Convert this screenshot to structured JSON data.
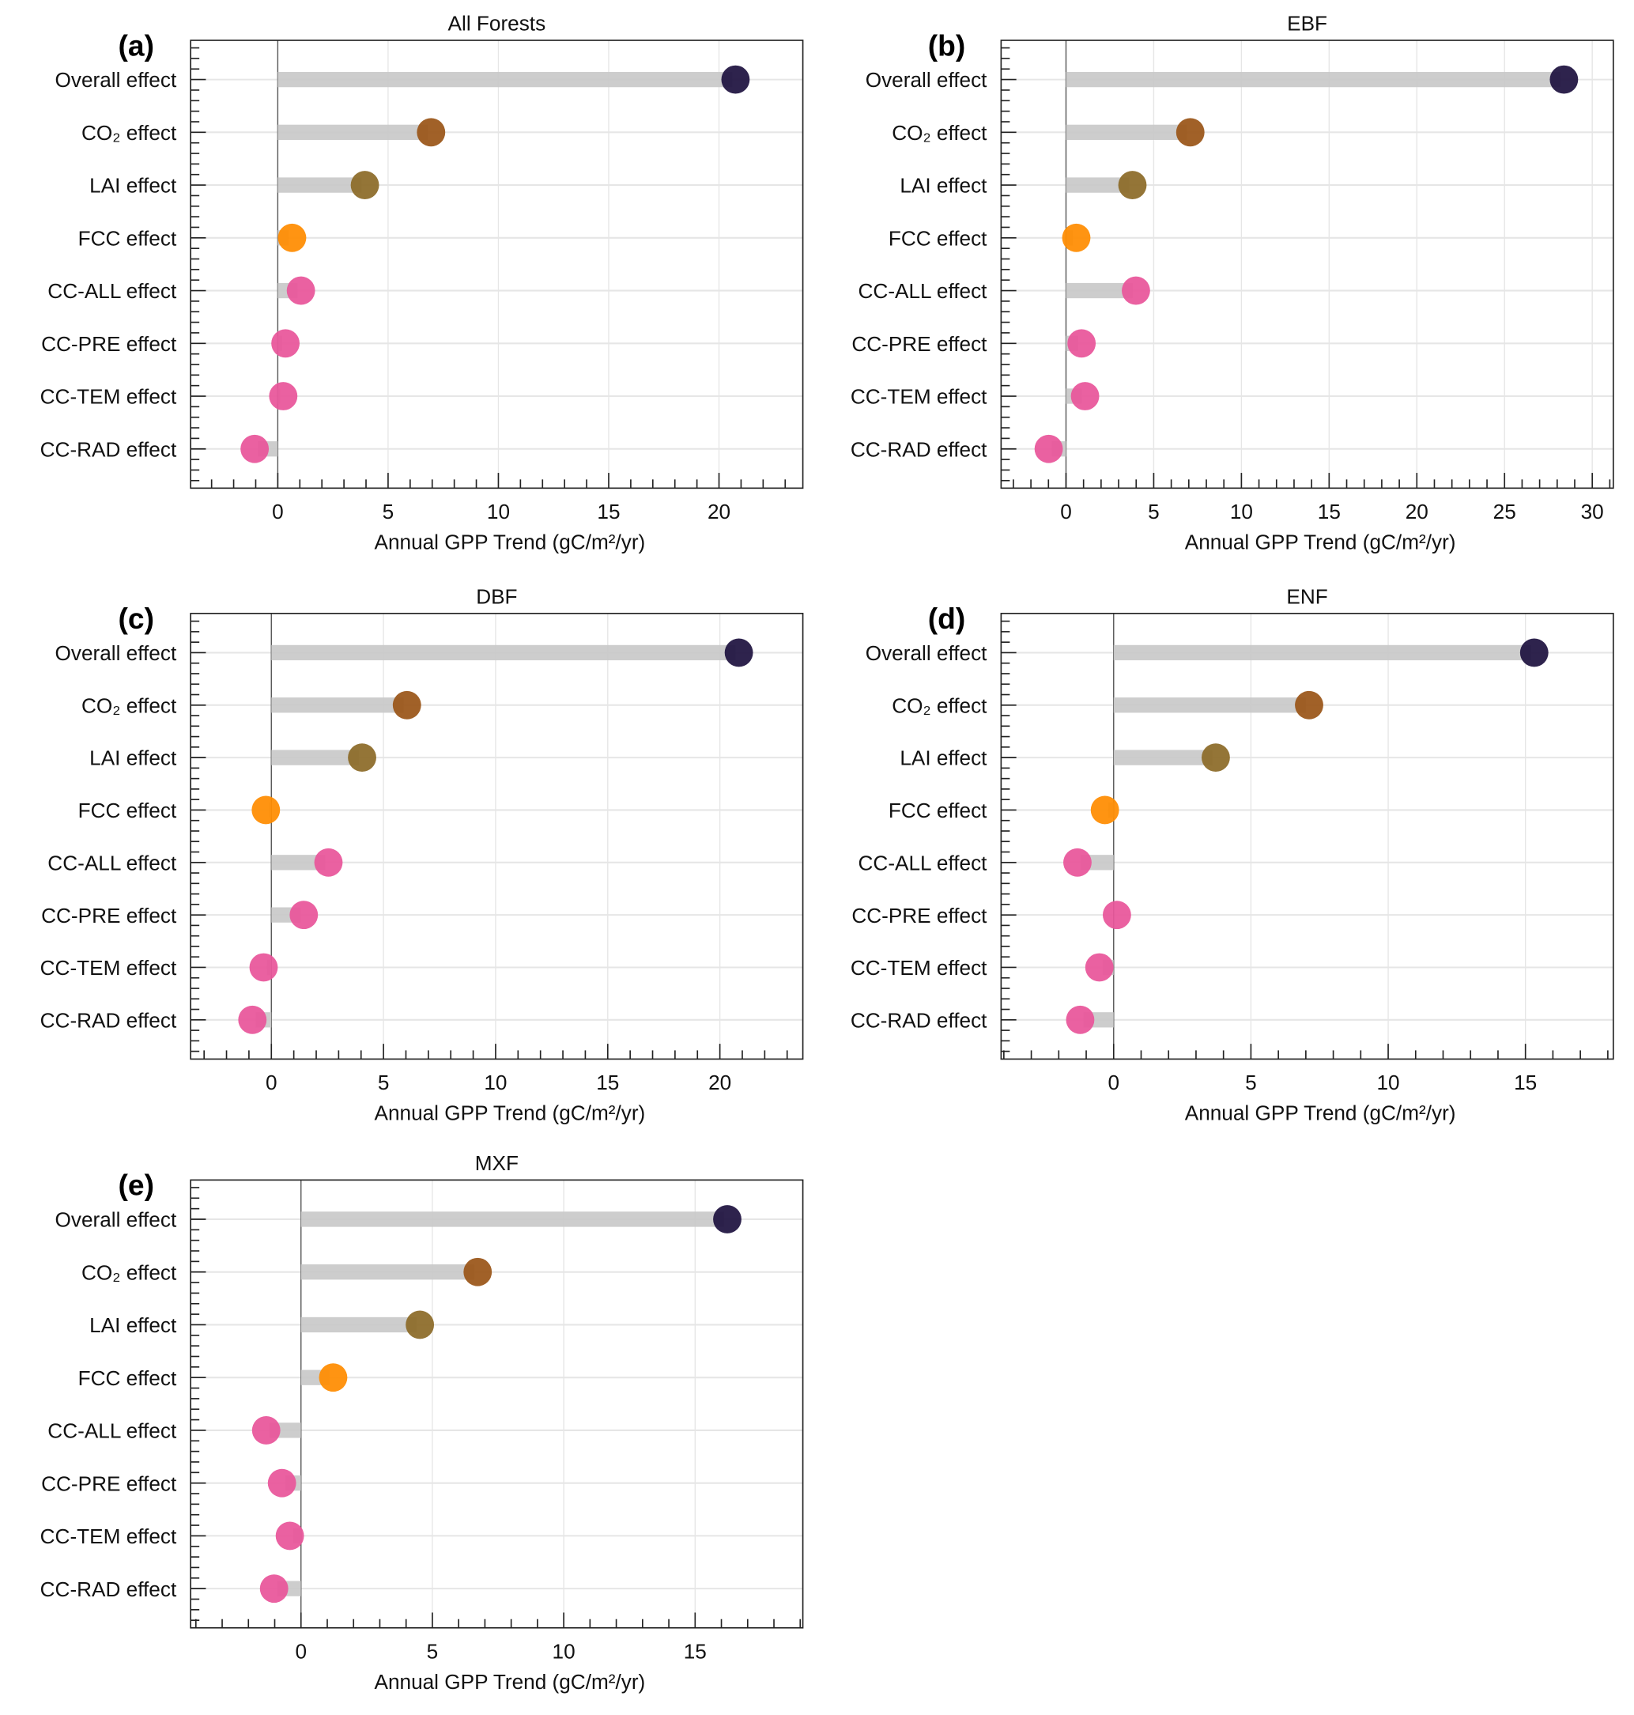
{
  "chart_data": [
    {
      "type": "bar",
      "panel_label": "(a)",
      "title": "All Forests",
      "xlabel": "Annual GPP Trend (gC/m²/yr)",
      "xlim": [
        -3.95,
        23.8
      ],
      "xticks": [
        0,
        5,
        10,
        15,
        20
      ],
      "categories": [
        "Overall effect",
        "CO₂ effect",
        "LAI effect",
        "FCC effect",
        "CC-ALL effect",
        "CC-PRE effect",
        "CC-TEM effect",
        "CC-RAD effect"
      ],
      "values": [
        20.6,
        6.8,
        3.8,
        0.5,
        0.9,
        0.2,
        0.1,
        -0.9
      ]
    },
    {
      "type": "bar",
      "panel_label": "(b)",
      "title": "EBF",
      "xlabel": "Annual GPP Trend (gC/m²/yr)",
      "xlim": [
        -3.7,
        31.2
      ],
      "xticks": [
        0,
        5,
        10,
        15,
        20,
        25,
        30
      ],
      "categories": [
        "Overall effect",
        "CO₂ effect",
        "LAI effect",
        "FCC effect",
        "CC-ALL effect",
        "CC-PRE effect",
        "CC-TEM effect",
        "CC-RAD effect"
      ],
      "values": [
        28.2,
        6.9,
        3.6,
        0.4,
        3.8,
        0.7,
        0.9,
        -0.8
      ]
    },
    {
      "type": "bar",
      "panel_label": "(c)",
      "title": "DBF",
      "xlabel": "Annual GPP Trend (gC/m²/yr)",
      "xlim": [
        -3.6,
        23.7
      ],
      "xticks": [
        0,
        5,
        10,
        15,
        20
      ],
      "categories": [
        "Overall effect",
        "CO₂ effect",
        "LAI effect",
        "FCC effect",
        "CC-ALL effect",
        "CC-PRE effect",
        "CC-TEM effect",
        "CC-RAD effect"
      ],
      "values": [
        20.7,
        5.9,
        3.9,
        -0.1,
        2.4,
        1.3,
        -0.2,
        -0.7
      ]
    },
    {
      "type": "bar",
      "panel_label": "(d)",
      "title": "ENF",
      "xlabel": "Annual GPP Trend (gC/m²/yr)",
      "xlim": [
        -4.1,
        18.2
      ],
      "xticks": [
        0,
        5,
        10,
        15
      ],
      "categories": [
        "Overall effect",
        "CO₂ effect",
        "LAI effect",
        "FCC effect",
        "CC-ALL effect",
        "CC-PRE effect",
        "CC-TEM effect",
        "CC-RAD effect"
      ],
      "values": [
        15.2,
        7.0,
        3.6,
        -0.2,
        -1.2,
        0.0,
        -0.4,
        -1.1
      ]
    },
    {
      "type": "bar",
      "panel_label": "(e)",
      "title": "MXF",
      "xlabel": "Annual GPP Trend (gC/m²/yr)",
      "xlim": [
        -4.2,
        19.1
      ],
      "xticks": [
        0,
        5,
        10,
        15
      ],
      "categories": [
        "Overall effect",
        "CO₂ effect",
        "LAI effect",
        "FCC effect",
        "CC-ALL effect",
        "CC-PRE effect",
        "CC-TEM effect",
        "CC-RAD effect"
      ],
      "values": [
        16.1,
        6.6,
        4.4,
        1.1,
        -1.2,
        -0.6,
        -0.3,
        -0.9
      ]
    }
  ],
  "colors": [
    "#1e1240",
    "#9a5518",
    "#8c6a28",
    "#ff8c00",
    "#e8559a",
    "#e8559a",
    "#e8559a",
    "#e8559a"
  ],
  "bar_color": "#c8c8c8"
}
